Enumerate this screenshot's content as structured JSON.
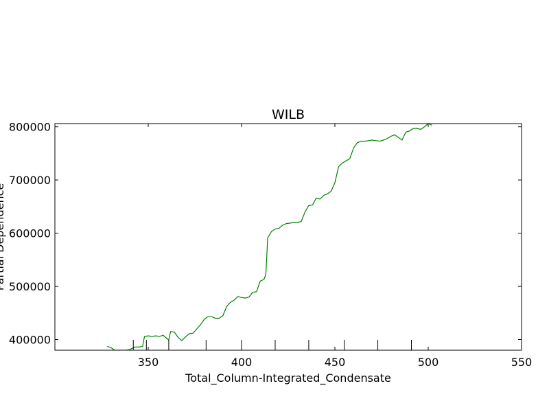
{
  "chart_data": {
    "type": "line",
    "title": "WILB",
    "xlabel": "Total_Column-Integrated_Condensate",
    "ylabel": "Partial Dependence",
    "xlim": [
      300,
      550
    ],
    "ylim": [
      380000,
      806000
    ],
    "xticks": [
      350,
      400,
      450,
      500,
      550
    ],
    "yticks": [
      400000,
      500000,
      600000,
      700000,
      800000
    ],
    "xtick_labels": [
      "350",
      "400",
      "450",
      "500",
      "550"
    ],
    "ytick_labels": [
      "400000",
      "500000",
      "600000",
      "700000",
      "800000"
    ],
    "rug_x": [
      342,
      349,
      361,
      381,
      400,
      418,
      436,
      455,
      473,
      491
    ],
    "grid": false,
    "series": [
      {
        "color": "#008000",
        "x": [
          328,
          330,
          332,
          334,
          336,
          338,
          340,
          341,
          343,
          345,
          347,
          348,
          350,
          352,
          354,
          356,
          358,
          360,
          361,
          362,
          364,
          366,
          368,
          370,
          372,
          374,
          376,
          378,
          380,
          382,
          384,
          386,
          388,
          390,
          392,
          394,
          396,
          398,
          400,
          402,
          404,
          406,
          408,
          410,
          412,
          413,
          414,
          416,
          418,
          420,
          422,
          424,
          426,
          428,
          430,
          432,
          434,
          436,
          438,
          440,
          442,
          444,
          446,
          448,
          450,
          452,
          454,
          456,
          458,
          460,
          462,
          464,
          466,
          468,
          470,
          472,
          474,
          476,
          478,
          480,
          482,
          484,
          486,
          488,
          490,
          492,
          494,
          496,
          498,
          500,
          502
        ],
        "y": [
          387000,
          385000,
          380000,
          380000,
          380000,
          380000,
          381000,
          383000,
          386000,
          386000,
          387000,
          406000,
          407000,
          406000,
          407000,
          406000,
          408000,
          402000,
          399000,
          415000,
          414000,
          404000,
          398000,
          405000,
          411000,
          412000,
          420000,
          428000,
          438000,
          443000,
          443000,
          440000,
          440000,
          445000,
          462000,
          470000,
          474000,
          481000,
          479000,
          478000,
          480000,
          489000,
          490000,
          510000,
          513000,
          522000,
          591000,
          603000,
          608000,
          609000,
          615000,
          618000,
          619000,
          620000,
          620000,
          622000,
          640000,
          652000,
          653000,
          666000,
          664000,
          671000,
          674000,
          679000,
          695000,
          725000,
          732000,
          736000,
          740000,
          760000,
          770000,
          773000,
          773000,
          774000,
          775000,
          774000,
          773000,
          775000,
          778000,
          782000,
          785000,
          780000,
          775000,
          790000,
          792000,
          797000,
          797000,
          795000,
          800000,
          806000,
          803000
        ]
      }
    ]
  }
}
